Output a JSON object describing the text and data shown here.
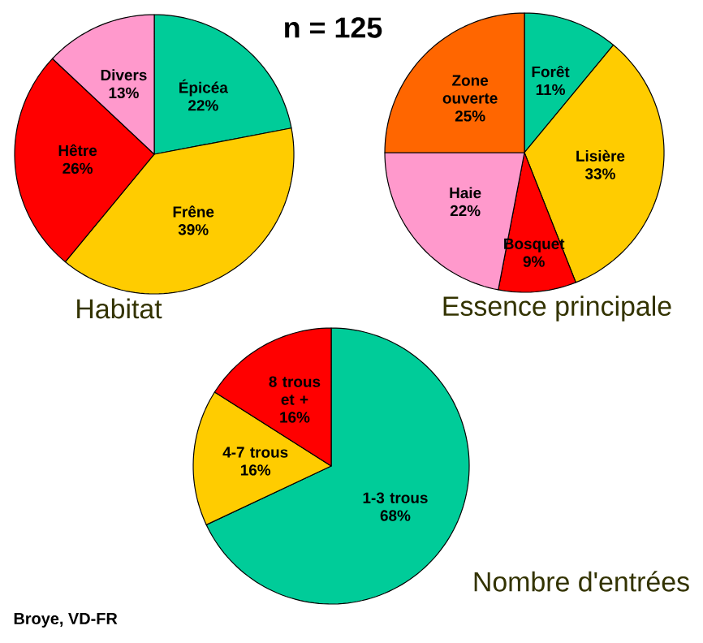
{
  "chart_data": [
    {
      "type": "pie",
      "title": "Habitat",
      "annotations": [
        "n = 125"
      ],
      "categories": [
        "Épicéa",
        "Frêne",
        "Hêtre",
        "Divers"
      ],
      "values": [
        22,
        39,
        26,
        13
      ],
      "value_labels": [
        "22%",
        "39%",
        "26%",
        "13%"
      ],
      "colors": [
        "#00cc99",
        "#ffcc00",
        "#ff0000",
        "#ff99cc"
      ]
    },
    {
      "type": "pie",
      "title": "Essence principale",
      "categories": [
        "Forêt",
        "Lisière",
        "Bosquet",
        "Haie",
        "Zone ouverte"
      ],
      "values": [
        11,
        33,
        9,
        22,
        25
      ],
      "value_labels": [
        "11%",
        "33%",
        "9%",
        "22%",
        "25%"
      ],
      "colors": [
        "#00cc99",
        "#ffcc00",
        "#ff0000",
        "#ff99cc",
        "#ff6600"
      ]
    },
    {
      "type": "pie",
      "title": "Nombre d'entrées",
      "annotations": [
        "Broye, VD-FR"
      ],
      "categories": [
        "1-3 trous",
        "4-7 trous",
        "8 trous et +"
      ],
      "values": [
        68,
        16,
        16
      ],
      "value_labels": [
        "68%",
        "16%",
        "16%"
      ],
      "colors": [
        "#00cc99",
        "#ffcc00",
        "#ff0000"
      ]
    }
  ]
}
